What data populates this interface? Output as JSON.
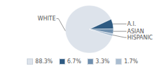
{
  "chart_data": {
    "type": "pie",
    "categories": [
      "WHITE",
      "A.I.",
      "ASIAN",
      "HISPANIC"
    ],
    "values": [
      88.3,
      6.7,
      3.3,
      1.7
    ],
    "value_labels": [
      "88.3%",
      "6.7%",
      "3.3%",
      "1.7%"
    ],
    "colors": [
      "#dde3eb",
      "#2f5b82",
      "#6f8fae",
      "#aabdd1"
    ],
    "legend": "bottom"
  }
}
